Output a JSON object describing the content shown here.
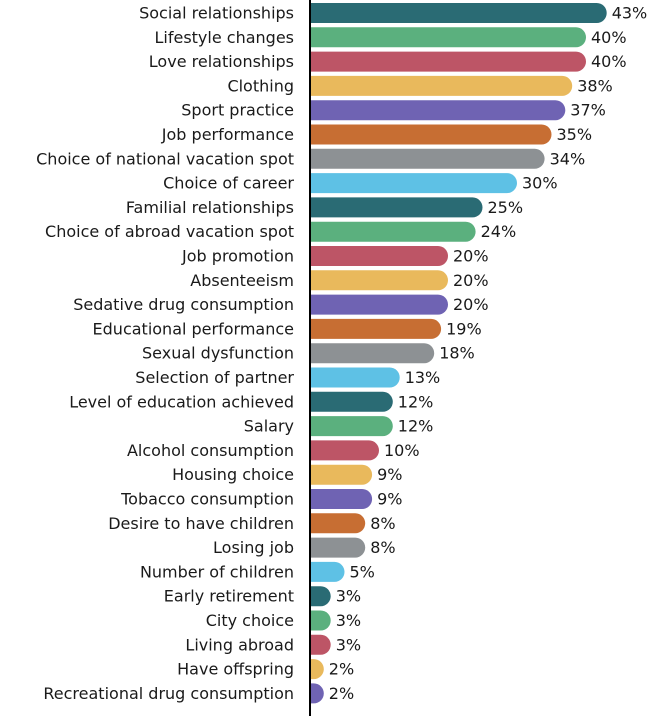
{
  "chart_data": {
    "type": "bar",
    "orientation": "horizontal",
    "title": "",
    "xlabel": "",
    "ylabel": "",
    "unit_suffix": "%",
    "categories": [
      "Social relationships",
      "Lifestyle changes",
      "Love relationships",
      "Clothing",
      "Sport practice",
      "Job performance",
      "Choice of national vacation spot",
      "Choice of career",
      "Familial relationships",
      "Choice of abroad vacation spot",
      "Job promotion",
      "Absenteeism",
      "Sedative drug consumption",
      "Educational performance",
      "Sexual dysfunction",
      "Selection of partner",
      "Level of education achieved",
      "Salary",
      "Alcohol consumption",
      "Housing choice",
      "Tobacco consumption",
      "Desire to have children",
      "Losing job",
      "Number of children",
      "Early retirement",
      "City choice",
      "Living abroad",
      "Have offspring",
      "Recreational drug consumption"
    ],
    "values": [
      43,
      40,
      40,
      38,
      37,
      35,
      34,
      30,
      25,
      24,
      20,
      20,
      20,
      19,
      18,
      13,
      12,
      12,
      10,
      9,
      9,
      8,
      8,
      5,
      3,
      3,
      3,
      2,
      2
    ],
    "xlim": [
      0,
      45
    ],
    "palette": [
      "#2a6b74",
      "#5bb07e",
      "#bd5566",
      "#e9b95c",
      "#6f63b3",
      "#c76e33",
      "#8d9194",
      "#5ec1e5"
    ],
    "axis_color": "#000000"
  }
}
